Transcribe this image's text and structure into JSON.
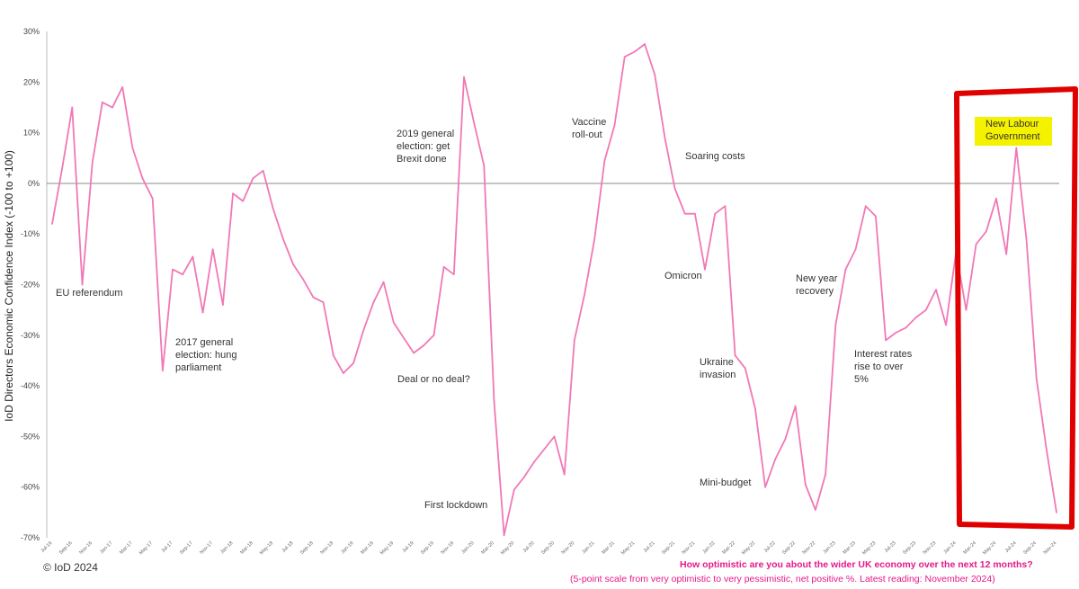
{
  "chart_data": {
    "type": "line",
    "ylabel": "IoD Directors Economic Confidence Index (-100 to +100)",
    "ylim": [
      -70,
      30
    ],
    "yticks": [
      {
        "value": 30,
        "label": "30%"
      },
      {
        "value": 20,
        "label": "20%"
      },
      {
        "value": 10,
        "label": "10%"
      },
      {
        "value": 0,
        "label": "0%"
      },
      {
        "value": -10,
        "label": "-10%"
      },
      {
        "value": -20,
        "label": "-20%"
      },
      {
        "value": -30,
        "label": "-30%"
      },
      {
        "value": -40,
        "label": "-40%"
      },
      {
        "value": -50,
        "label": "-50%"
      },
      {
        "value": -60,
        "label": "-60%"
      },
      {
        "value": -70,
        "label": "-70%"
      }
    ],
    "x": [
      "Jul-16",
      "Aug-16",
      "Sep-16",
      "Oct-16",
      "Nov-16",
      "Dec-16",
      "Jan-17",
      "Feb-17",
      "Mar-17",
      "Apr-17",
      "May-17",
      "Jun-17",
      "Jul-17",
      "Aug-17",
      "Sep-17",
      "Oct-17",
      "Nov-17",
      "Dec-17",
      "Jan-18",
      "Feb-18",
      "Mar-18",
      "Apr-18",
      "May-18",
      "Jun-18",
      "Jul-18",
      "Aug-18",
      "Sep-18",
      "Oct-18",
      "Nov-18",
      "Dec-18",
      "Jan-19",
      "Feb-19",
      "Mar-19",
      "Apr-19",
      "May-19",
      "Jun-19",
      "Jul-19",
      "Aug-19",
      "Sep-19",
      "Oct-19",
      "Nov-19",
      "Dec-19",
      "Jan-20",
      "Feb-20",
      "Mar-20",
      "Apr-20",
      "May-20",
      "Jun-20",
      "Jul-20",
      "Aug-20",
      "Sep-20",
      "Oct-20",
      "Nov-20",
      "Dec-20",
      "Jan-21",
      "Feb-21",
      "Mar-21",
      "Apr-21",
      "May-21",
      "Jun-21",
      "Jul-21",
      "Aug-21",
      "Sep-21",
      "Oct-21",
      "Nov-21",
      "Dec-21",
      "Jan-22",
      "Feb-22",
      "Mar-22",
      "Apr-22",
      "May-22",
      "Jun-22",
      "Jul-22",
      "Aug-22",
      "Sep-22",
      "Oct-22",
      "Nov-22",
      "Dec-22",
      "Jan-23",
      "Feb-23",
      "Mar-23",
      "Apr-23",
      "May-23",
      "Jun-23",
      "Jul-23",
      "Aug-23",
      "Sep-23",
      "Oct-23",
      "Nov-23",
      "Dec-23",
      "Jan-24",
      "Feb-24",
      "Mar-24",
      "Apr-24",
      "May-24",
      "Jun-24",
      "Jul-24",
      "Aug-24",
      "Sep-24",
      "Oct-24",
      "Nov-24"
    ],
    "xtick_labels": [
      "Jul-16",
      "Sep-16",
      "Nov-16",
      "Jan-17",
      "Mar-17",
      "May-17",
      "Jul-17",
      "Sep-17",
      "Nov-17",
      "Jan-18",
      "Mar-18",
      "May-18",
      "Jul-18",
      "Sep-18",
      "Nov-18",
      "Jan-19",
      "Mar-19",
      "May-19",
      "Jul-19",
      "Sep-19",
      "Nov-19",
      "Jan-20",
      "Mar-20",
      "May-20",
      "Jul-20",
      "Sep-20",
      "Nov-20",
      "Jan-21",
      "Mar-21",
      "May-21",
      "Jul-21",
      "Sep-21",
      "Nov-21",
      "Jan-22",
      "Mar-22",
      "May-22",
      "Jul-22",
      "Sep-22",
      "Nov-22",
      "Jan-23",
      "Mar-23",
      "May-23",
      "Jul-23",
      "Sep-23",
      "Nov-23",
      "Jan-24",
      "Mar-24",
      "May-24",
      "Jul-24",
      "Sep-24",
      "Nov-24"
    ],
    "series": [
      {
        "color": "#f178b6",
        "values": [
          -8,
          3,
          15,
          -20,
          4,
          16,
          15,
          19,
          7,
          1,
          -3,
          -37,
          -17,
          -18,
          -14.5,
          -25.5,
          -13,
          -24,
          -2,
          -3.5,
          1,
          2.5,
          -5,
          -11,
          -16,
          -19,
          -22.5,
          -23.5,
          -34,
          -37.5,
          -35.5,
          -29,
          -23.5,
          -19.5,
          -27.5,
          -30.5,
          -33.5,
          -32,
          -30,
          -16.5,
          -18,
          21,
          12,
          3.5,
          -43,
          -69.5,
          -60.5,
          -58,
          -55,
          -52.5,
          -50,
          -57.5,
          -31,
          -22,
          -11,
          4.5,
          11.5,
          25,
          26,
          27.5,
          21.5,
          9,
          -1,
          -6,
          -6,
          -17,
          -6,
          -4.5,
          -34,
          -36.5,
          -44.5,
          -60,
          -54.5,
          -50.5,
          -44,
          -59.5,
          -64.5,
          -57.5,
          -28,
          -17,
          -13,
          -4.5,
          -6.5,
          -31,
          -29.5,
          -28.5,
          -26.5,
          -25,
          -21,
          -28,
          -13.5,
          -25,
          -12,
          -9.5,
          -3,
          -14,
          7,
          -11,
          -38.5,
          -52.5,
          -65
        ]
      }
    ],
    "annotations": [
      {
        "text": [
          "EU referendum"
        ]
      },
      {
        "text": [
          "2017 general",
          "election: hung",
          "parliament"
        ]
      },
      {
        "text": [
          "2019 general",
          "election: get",
          "Brexit done"
        ]
      },
      {
        "text": [
          "Deal or no deal?"
        ]
      },
      {
        "text": [
          "First lockdown"
        ]
      },
      {
        "text": [
          "Vaccine",
          "roll-out"
        ]
      },
      {
        "text": [
          "Soaring costs"
        ]
      },
      {
        "text": [
          "Omicron"
        ]
      },
      {
        "text": [
          "Ukraine",
          "invasion"
        ]
      },
      {
        "text": [
          "Mini-budget"
        ]
      },
      {
        "text": [
          "New year",
          "recovery"
        ]
      },
      {
        "text": [
          "Interest rates",
          "rise to over",
          "5%"
        ]
      },
      {
        "text": [
          "New Labour",
          "Government"
        ],
        "highlight": "#f5f200"
      }
    ],
    "zero_line_color": "#888888",
    "box_color": "#e00000"
  },
  "footer": {
    "copyright": "© IoD 2024",
    "question": "How optimistic are you about the wider UK economy over the next 12 months?",
    "scale_note": "(5-point scale from very optimistic to very pessimistic, net positive %. Latest reading: November 2024)"
  }
}
